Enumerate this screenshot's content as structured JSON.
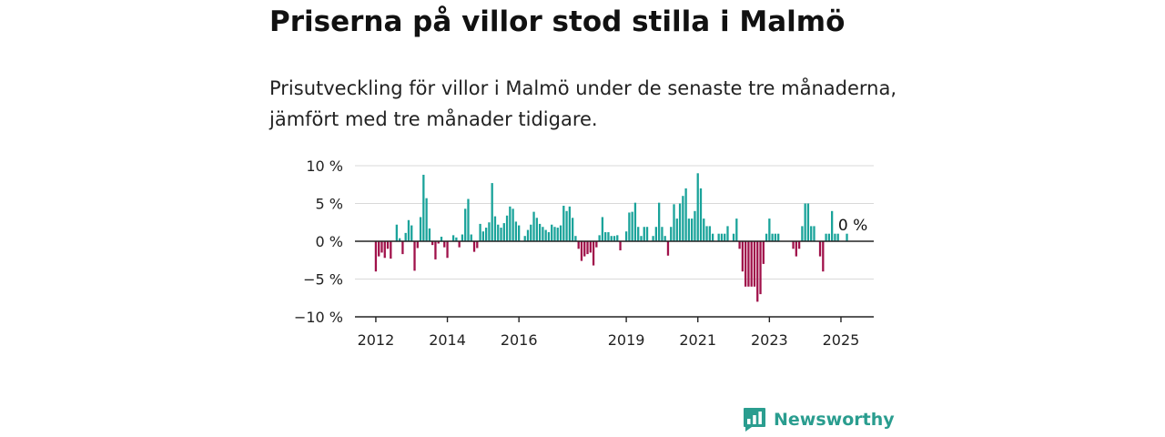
{
  "header": {
    "title": "Priserna på villor stod stilla i Malmö",
    "subtitle": "Prisutveckling för villor i Malmö under de senaste tre månaderna, jämfört med tre månader tidigare."
  },
  "brand": {
    "name": "Newsworthy",
    "color": "#2a9d8f"
  },
  "colors": {
    "positive": "#1aa39a",
    "negative": "#a0114a",
    "grid": "#d9d9d9",
    "axis": "#222222"
  },
  "chart_data": {
    "type": "bar",
    "title": "",
    "xlabel": "",
    "ylabel": "",
    "ylim": [
      -10,
      10
    ],
    "yticks": [
      {
        "value": 10,
        "label": "10 %"
      },
      {
        "value": 5,
        "label": "5 %"
      },
      {
        "value": 0,
        "label": "0 %"
      },
      {
        "value": -5,
        "label": "−5 %"
      },
      {
        "value": -10,
        "label": "−10 %"
      }
    ],
    "xlim": [
      "2011-06",
      "2025-12"
    ],
    "xticks": [
      {
        "date": "2012-01",
        "label": "2012"
      },
      {
        "date": "2014-01",
        "label": "2014"
      },
      {
        "date": "2016-01",
        "label": "2016"
      },
      {
        "date": "2019-01",
        "label": "2019"
      },
      {
        "date": "2021-01",
        "label": "2021"
      },
      {
        "date": "2023-01",
        "label": "2023"
      },
      {
        "date": "2025-01",
        "label": "2025"
      }
    ],
    "annotation": {
      "date": "2025-05",
      "value": 0,
      "label": "0 %"
    },
    "points": [
      {
        "date": "2012-01",
        "value": -4
      },
      {
        "date": "2012-02",
        "value": -2
      },
      {
        "date": "2012-03",
        "value": -1.5
      },
      {
        "date": "2012-04",
        "value": -2.2
      },
      {
        "date": "2012-05",
        "value": -1
      },
      {
        "date": "2012-06",
        "value": -2.3
      },
      {
        "date": "2012-08",
        "value": 2.2
      },
      {
        "date": "2012-09",
        "value": 0.4
      },
      {
        "date": "2012-10",
        "value": -1.7
      },
      {
        "date": "2012-11",
        "value": 1.1
      },
      {
        "date": "2012-12",
        "value": 2.8
      },
      {
        "date": "2013-01",
        "value": 2.1
      },
      {
        "date": "2013-02",
        "value": -3.9
      },
      {
        "date": "2013-03",
        "value": -0.9
      },
      {
        "date": "2013-04",
        "value": 3.2
      },
      {
        "date": "2013-05",
        "value": 8.8
      },
      {
        "date": "2013-06",
        "value": 5.7
      },
      {
        "date": "2013-07",
        "value": 1.7
      },
      {
        "date": "2013-08",
        "value": -0.5
      },
      {
        "date": "2013-09",
        "value": -2.4
      },
      {
        "date": "2013-10",
        "value": -0.3
      },
      {
        "date": "2013-11",
        "value": 0.6
      },
      {
        "date": "2013-12",
        "value": -0.8
      },
      {
        "date": "2014-01",
        "value": -2.2
      },
      {
        "date": "2014-03",
        "value": 0.8
      },
      {
        "date": "2014-04",
        "value": 0.5
      },
      {
        "date": "2014-05",
        "value": -0.8
      },
      {
        "date": "2014-06",
        "value": 0.9
      },
      {
        "date": "2014-07",
        "value": 4.3
      },
      {
        "date": "2014-08",
        "value": 5.6
      },
      {
        "date": "2014-09",
        "value": 0.9
      },
      {
        "date": "2014-10",
        "value": -1.4
      },
      {
        "date": "2014-11",
        "value": -0.9
      },
      {
        "date": "2014-12",
        "value": 2.3
      },
      {
        "date": "2015-01",
        "value": 1.3
      },
      {
        "date": "2015-02",
        "value": 1.8
      },
      {
        "date": "2015-03",
        "value": 2.5
      },
      {
        "date": "2015-04",
        "value": 7.7
      },
      {
        "date": "2015-05",
        "value": 3.3
      },
      {
        "date": "2015-06",
        "value": 2.2
      },
      {
        "date": "2015-07",
        "value": 1.8
      },
      {
        "date": "2015-08",
        "value": 2.4
      },
      {
        "date": "2015-09",
        "value": 3.4
      },
      {
        "date": "2015-10",
        "value": 4.6
      },
      {
        "date": "2015-11",
        "value": 4.3
      },
      {
        "date": "2015-12",
        "value": 2.6
      },
      {
        "date": "2016-01",
        "value": 2.1
      },
      {
        "date": "2016-03",
        "value": 0.7
      },
      {
        "date": "2016-04",
        "value": 1.5
      },
      {
        "date": "2016-05",
        "value": 2.2
      },
      {
        "date": "2016-06",
        "value": 3.9
      },
      {
        "date": "2016-07",
        "value": 3.1
      },
      {
        "date": "2016-08",
        "value": 2.3
      },
      {
        "date": "2016-09",
        "value": 1.9
      },
      {
        "date": "2016-10",
        "value": 1.5
      },
      {
        "date": "2016-11",
        "value": 1.2
      },
      {
        "date": "2016-12",
        "value": 2.2
      },
      {
        "date": "2017-01",
        "value": 1.9
      },
      {
        "date": "2017-02",
        "value": 1.8
      },
      {
        "date": "2017-03",
        "value": 2.1
      },
      {
        "date": "2017-04",
        "value": 4.7
      },
      {
        "date": "2017-05",
        "value": 4.0
      },
      {
        "date": "2017-06",
        "value": 4.6
      },
      {
        "date": "2017-07",
        "value": 3.1
      },
      {
        "date": "2017-08",
        "value": 0.7
      },
      {
        "date": "2017-09",
        "value": -1.0
      },
      {
        "date": "2017-10",
        "value": -2.6
      },
      {
        "date": "2017-11",
        "value": -2.0
      },
      {
        "date": "2017-12",
        "value": -1.7
      },
      {
        "date": "2018-01",
        "value": -1.5
      },
      {
        "date": "2018-02",
        "value": -3.2
      },
      {
        "date": "2018-03",
        "value": -0.8
      },
      {
        "date": "2018-04",
        "value": 0.8
      },
      {
        "date": "2018-05",
        "value": 3.2
      },
      {
        "date": "2018-06",
        "value": 1.2
      },
      {
        "date": "2018-07",
        "value": 1.2
      },
      {
        "date": "2018-08",
        "value": 0.7
      },
      {
        "date": "2018-09",
        "value": 0.7
      },
      {
        "date": "2018-10",
        "value": 0.8
      },
      {
        "date": "2018-11",
        "value": -1.2
      },
      {
        "date": "2019-01",
        "value": 1.3
      },
      {
        "date": "2019-02",
        "value": 3.8
      },
      {
        "date": "2019-03",
        "value": 3.9
      },
      {
        "date": "2019-04",
        "value": 5.1
      },
      {
        "date": "2019-05",
        "value": 1.9
      },
      {
        "date": "2019-06",
        "value": 0.7
      },
      {
        "date": "2019-07",
        "value": 1.9
      },
      {
        "date": "2019-08",
        "value": 1.9
      },
      {
        "date": "2019-10",
        "value": 0.7
      },
      {
        "date": "2019-11",
        "value": 1.9
      },
      {
        "date": "2019-12",
        "value": 5.1
      },
      {
        "date": "2020-01",
        "value": 1.9
      },
      {
        "date": "2020-02",
        "value": 0.7
      },
      {
        "date": "2020-03",
        "value": -1.9
      },
      {
        "date": "2020-04",
        "value": 1.9
      },
      {
        "date": "2020-05",
        "value": 4.9
      },
      {
        "date": "2020-06",
        "value": 3.0
      },
      {
        "date": "2020-07",
        "value": 5.0
      },
      {
        "date": "2020-08",
        "value": 6.0
      },
      {
        "date": "2020-09",
        "value": 7.0
      },
      {
        "date": "2020-10",
        "value": 3.0
      },
      {
        "date": "2020-11",
        "value": 3.0
      },
      {
        "date": "2020-12",
        "value": 4.0
      },
      {
        "date": "2021-01",
        "value": 9.0
      },
      {
        "date": "2021-02",
        "value": 7.0
      },
      {
        "date": "2021-03",
        "value": 3.0
      },
      {
        "date": "2021-04",
        "value": 2.0
      },
      {
        "date": "2021-05",
        "value": 2.0
      },
      {
        "date": "2021-06",
        "value": 1.0
      },
      {
        "date": "2021-08",
        "value": 1.0
      },
      {
        "date": "2021-09",
        "value": 1.0
      },
      {
        "date": "2021-10",
        "value": 1.0
      },
      {
        "date": "2021-11",
        "value": 2.0
      },
      {
        "date": "2022-01",
        "value": 1.0
      },
      {
        "date": "2022-02",
        "value": 3.0
      },
      {
        "date": "2022-03",
        "value": -1.0
      },
      {
        "date": "2022-04",
        "value": -4.0
      },
      {
        "date": "2022-05",
        "value": -6.0
      },
      {
        "date": "2022-06",
        "value": -6.0
      },
      {
        "date": "2022-07",
        "value": -6.0
      },
      {
        "date": "2022-08",
        "value": -6.0
      },
      {
        "date": "2022-09",
        "value": -8.0
      },
      {
        "date": "2022-10",
        "value": -7.0
      },
      {
        "date": "2022-11",
        "value": -3.0
      },
      {
        "date": "2022-12",
        "value": 1.0
      },
      {
        "date": "2023-01",
        "value": 3.0
      },
      {
        "date": "2023-02",
        "value": 1.0
      },
      {
        "date": "2023-03",
        "value": 1.0
      },
      {
        "date": "2023-04",
        "value": 1.0
      },
      {
        "date": "2023-09",
        "value": -1.0
      },
      {
        "date": "2023-10",
        "value": -2.0
      },
      {
        "date": "2023-11",
        "value": -1.0
      },
      {
        "date": "2023-12",
        "value": 2.0
      },
      {
        "date": "2024-01",
        "value": 5.0
      },
      {
        "date": "2024-02",
        "value": 5.0
      },
      {
        "date": "2024-03",
        "value": 2.0
      },
      {
        "date": "2024-04",
        "value": 2.0
      },
      {
        "date": "2024-06",
        "value": -2.0
      },
      {
        "date": "2024-07",
        "value": -4.0
      },
      {
        "date": "2024-08",
        "value": 1.0
      },
      {
        "date": "2024-09",
        "value": 1.0
      },
      {
        "date": "2024-10",
        "value": 4.0
      },
      {
        "date": "2024-11",
        "value": 1.0
      },
      {
        "date": "2024-12",
        "value": 1.0
      },
      {
        "date": "2025-03",
        "value": 1.0
      }
    ]
  }
}
